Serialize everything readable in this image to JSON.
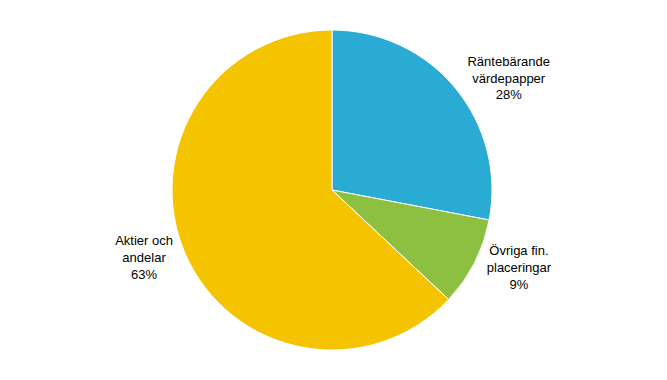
{
  "chart_data": {
    "type": "pie",
    "categories": [
      "Räntebärande\nvärdepapper",
      "Övriga fin.\nplaceringar",
      "Aktier och\nandelar"
    ],
    "values": [
      28,
      9,
      63
    ],
    "value_labels": [
      "28%",
      "9%",
      "63%"
    ],
    "colors": [
      "#29ABD4",
      "#8DC040",
      "#F5C400"
    ]
  }
}
